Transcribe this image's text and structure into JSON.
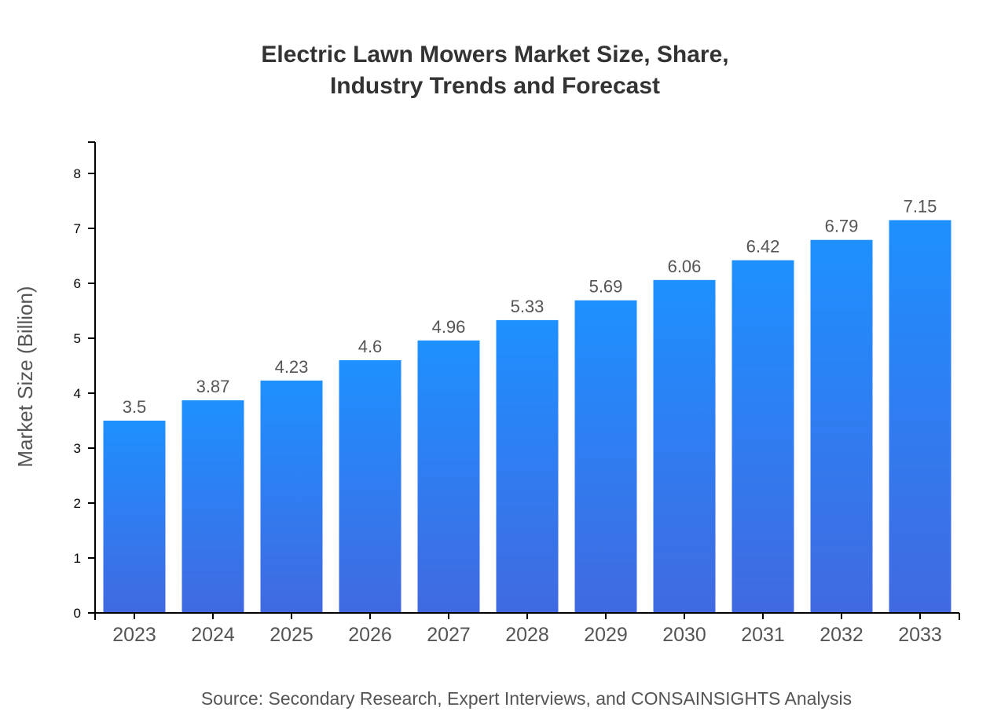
{
  "chart_data": {
    "type": "bar",
    "title_lines": [
      "Electric Lawn Mowers Market Size, Share,",
      "Industry Trends and Forecast"
    ],
    "categories": [
      "2023",
      "2024",
      "2025",
      "2026",
      "2027",
      "2028",
      "2029",
      "2030",
      "2031",
      "2032",
      "2033"
    ],
    "values": [
      3.5,
      3.87,
      4.23,
      4.6,
      4.96,
      5.33,
      5.69,
      6.06,
      6.42,
      6.79,
      7.15
    ],
    "data_labels": [
      "3.5",
      "3.87",
      "4.23",
      "4.6",
      "4.96",
      "5.33",
      "5.69",
      "6.06",
      "6.42",
      "6.79",
      "7.15"
    ],
    "xlabel": "",
    "ylabel": "Market Size (Billion)",
    "ylim": [
      0,
      8.57
    ],
    "yticks": [
      0,
      1,
      2,
      3,
      4,
      5,
      6,
      7,
      8
    ],
    "grid": false,
    "colors": {
      "bar_top": "#1E90FF",
      "bar_bottom": "#4169E1"
    },
    "source": "Source: Secondary Research, Expert Interviews, and CONSAINSIGHTS Analysis"
  }
}
